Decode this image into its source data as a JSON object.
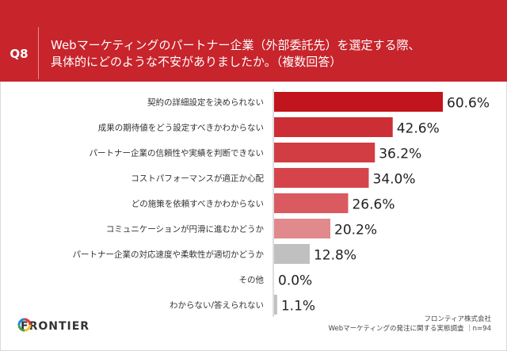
{
  "question": {
    "id": "Q8",
    "title": "Webマーケティングのパートナー企業（外部委託先）を選定する際、\n具体的にどのような不安がありましたか。（複数回答）"
  },
  "chart_data": {
    "type": "bar",
    "orientation": "horizontal",
    "categories": [
      "契約の詳細設定を決められない",
      "成果の期待値をどう設定すべきかわからない",
      "パートナー企業の信頼性や実績を判断できない",
      "コストパフォーマンスが適正か心配",
      "どの施策を依頼すべきかわからない",
      "コミュニケーションが円滑に進むかどうか",
      "パートナー企業の対応速度や柔軟性が適切かどうか",
      "その他",
      "わからない/答えられない"
    ],
    "values": [
      60.6,
      42.6,
      36.2,
      34.0,
      26.6,
      20.2,
      12.8,
      0.0,
      1.1
    ],
    "value_labels": [
      "60.6%",
      "42.6%",
      "36.2%",
      "34.0%",
      "26.6%",
      "20.2%",
      "12.8%",
      "0.0%",
      "1.1%"
    ],
    "bar_colors": [
      "#c2141c",
      "#cc2e36",
      "#d23c43",
      "#d5444b",
      "#da5a60",
      "#e08a8d",
      "#c0c0c0",
      "#c0c0c0",
      "#c0c0c0"
    ],
    "xlim": [
      0,
      60.6
    ],
    "grid": false,
    "legend": false
  },
  "footer": {
    "logo_text": "FRONTIER",
    "company": "フロンティア株式会社",
    "survey": "Webマーケティングの発注に関する実態調査 ｜n=94"
  }
}
